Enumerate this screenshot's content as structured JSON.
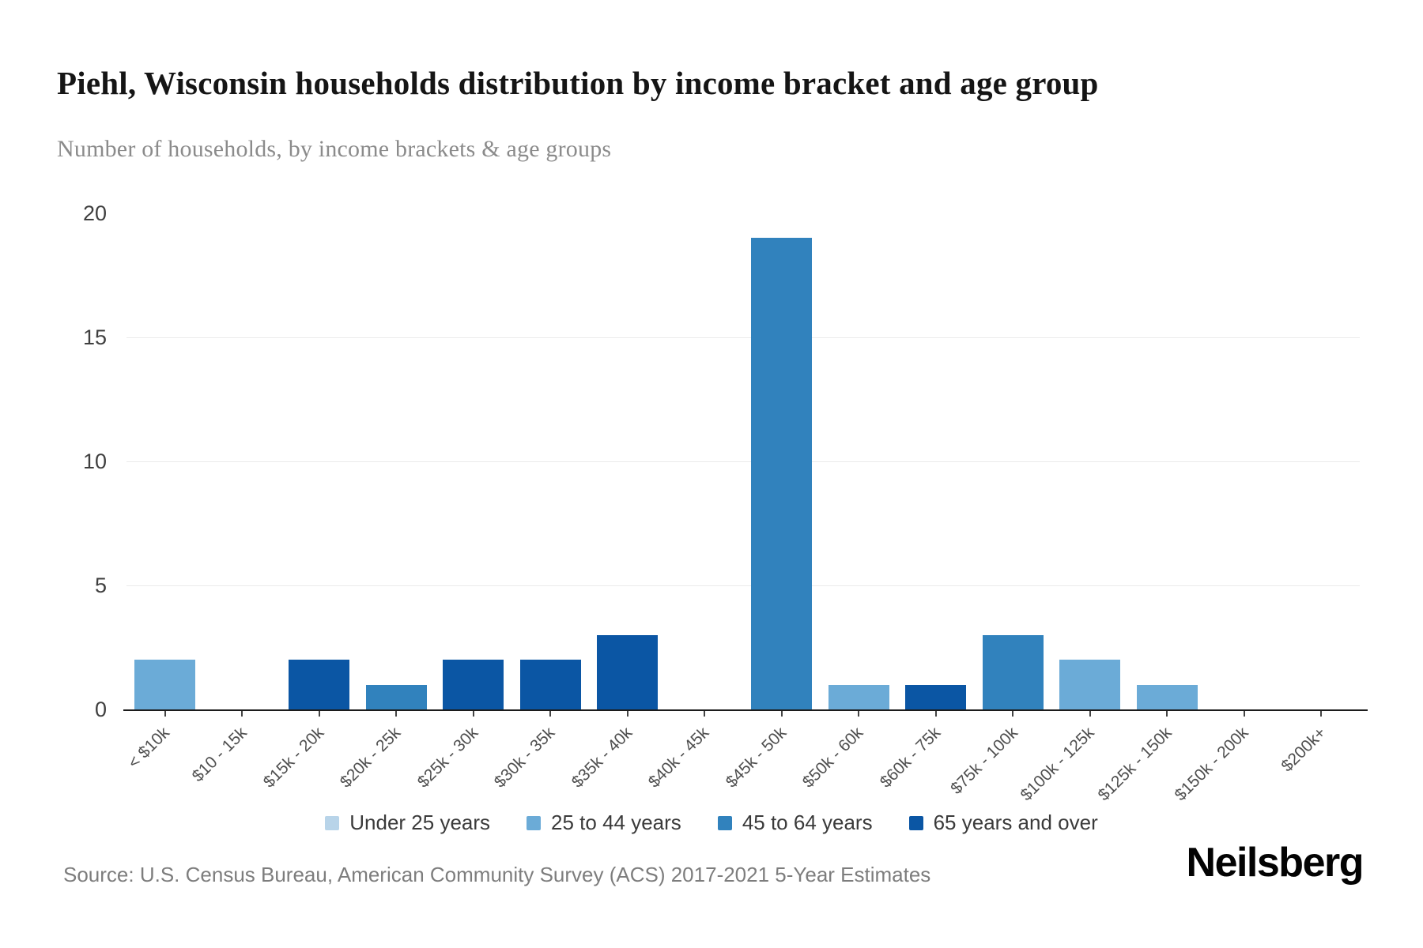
{
  "page": {
    "title": "Piehl, Wisconsin households distribution by income bracket and age group",
    "subtitle": "Number of households, by income brackets & age groups",
    "source": "Source: U.S. Census Bureau, American Community Survey (ACS) 2017-2021 5-Year Estimates",
    "brand": "Neilsberg"
  },
  "chart_data": {
    "type": "bar",
    "title": "Piehl, Wisconsin households distribution by income bracket and age group",
    "subtitle": "Number of households, by income brackets & age groups",
    "xlabel": "",
    "ylabel": "",
    "ylim": [
      0,
      20
    ],
    "yticks": [
      0,
      5,
      10,
      15,
      20
    ],
    "gridlines": [
      5,
      10,
      15
    ],
    "grid": "horizontal",
    "legend_position": "bottom",
    "categories": [
      "< $10k",
      "$10 - 15k",
      "$15k - 20k",
      "$20k - 25k",
      "$25k - 30k",
      "$30k - 35k",
      "$35k - 40k",
      "$40k - 45k",
      "$45k - 50k",
      "$50k - 60k",
      "$60k - 75k",
      "$75k - 100k",
      "$100k - 125k",
      "$125k - 150k",
      "$150k - 200k",
      "$200k+"
    ],
    "series": [
      {
        "name": "Under 25 years",
        "color": "#b8d4e9",
        "values": [
          0,
          0,
          0,
          0,
          0,
          0,
          0,
          0,
          0,
          0,
          0,
          0,
          0,
          0,
          0,
          0
        ]
      },
      {
        "name": "25 to 44 years",
        "color": "#6babd7",
        "values": [
          2,
          0,
          0,
          0,
          0,
          0,
          0,
          0,
          0,
          1,
          0,
          0,
          2,
          1,
          0,
          0
        ]
      },
      {
        "name": "45 to 64 years",
        "color": "#3182bd",
        "values": [
          0,
          0,
          0,
          1,
          0,
          0,
          0,
          0,
          19,
          0,
          0,
          3,
          0,
          0,
          0,
          0
        ]
      },
      {
        "name": "65 years and over",
        "color": "#0b56a4",
        "values": [
          0,
          0,
          2,
          0,
          2,
          2,
          3,
          0,
          0,
          0,
          1,
          0,
          0,
          0,
          0,
          0
        ]
      }
    ]
  }
}
